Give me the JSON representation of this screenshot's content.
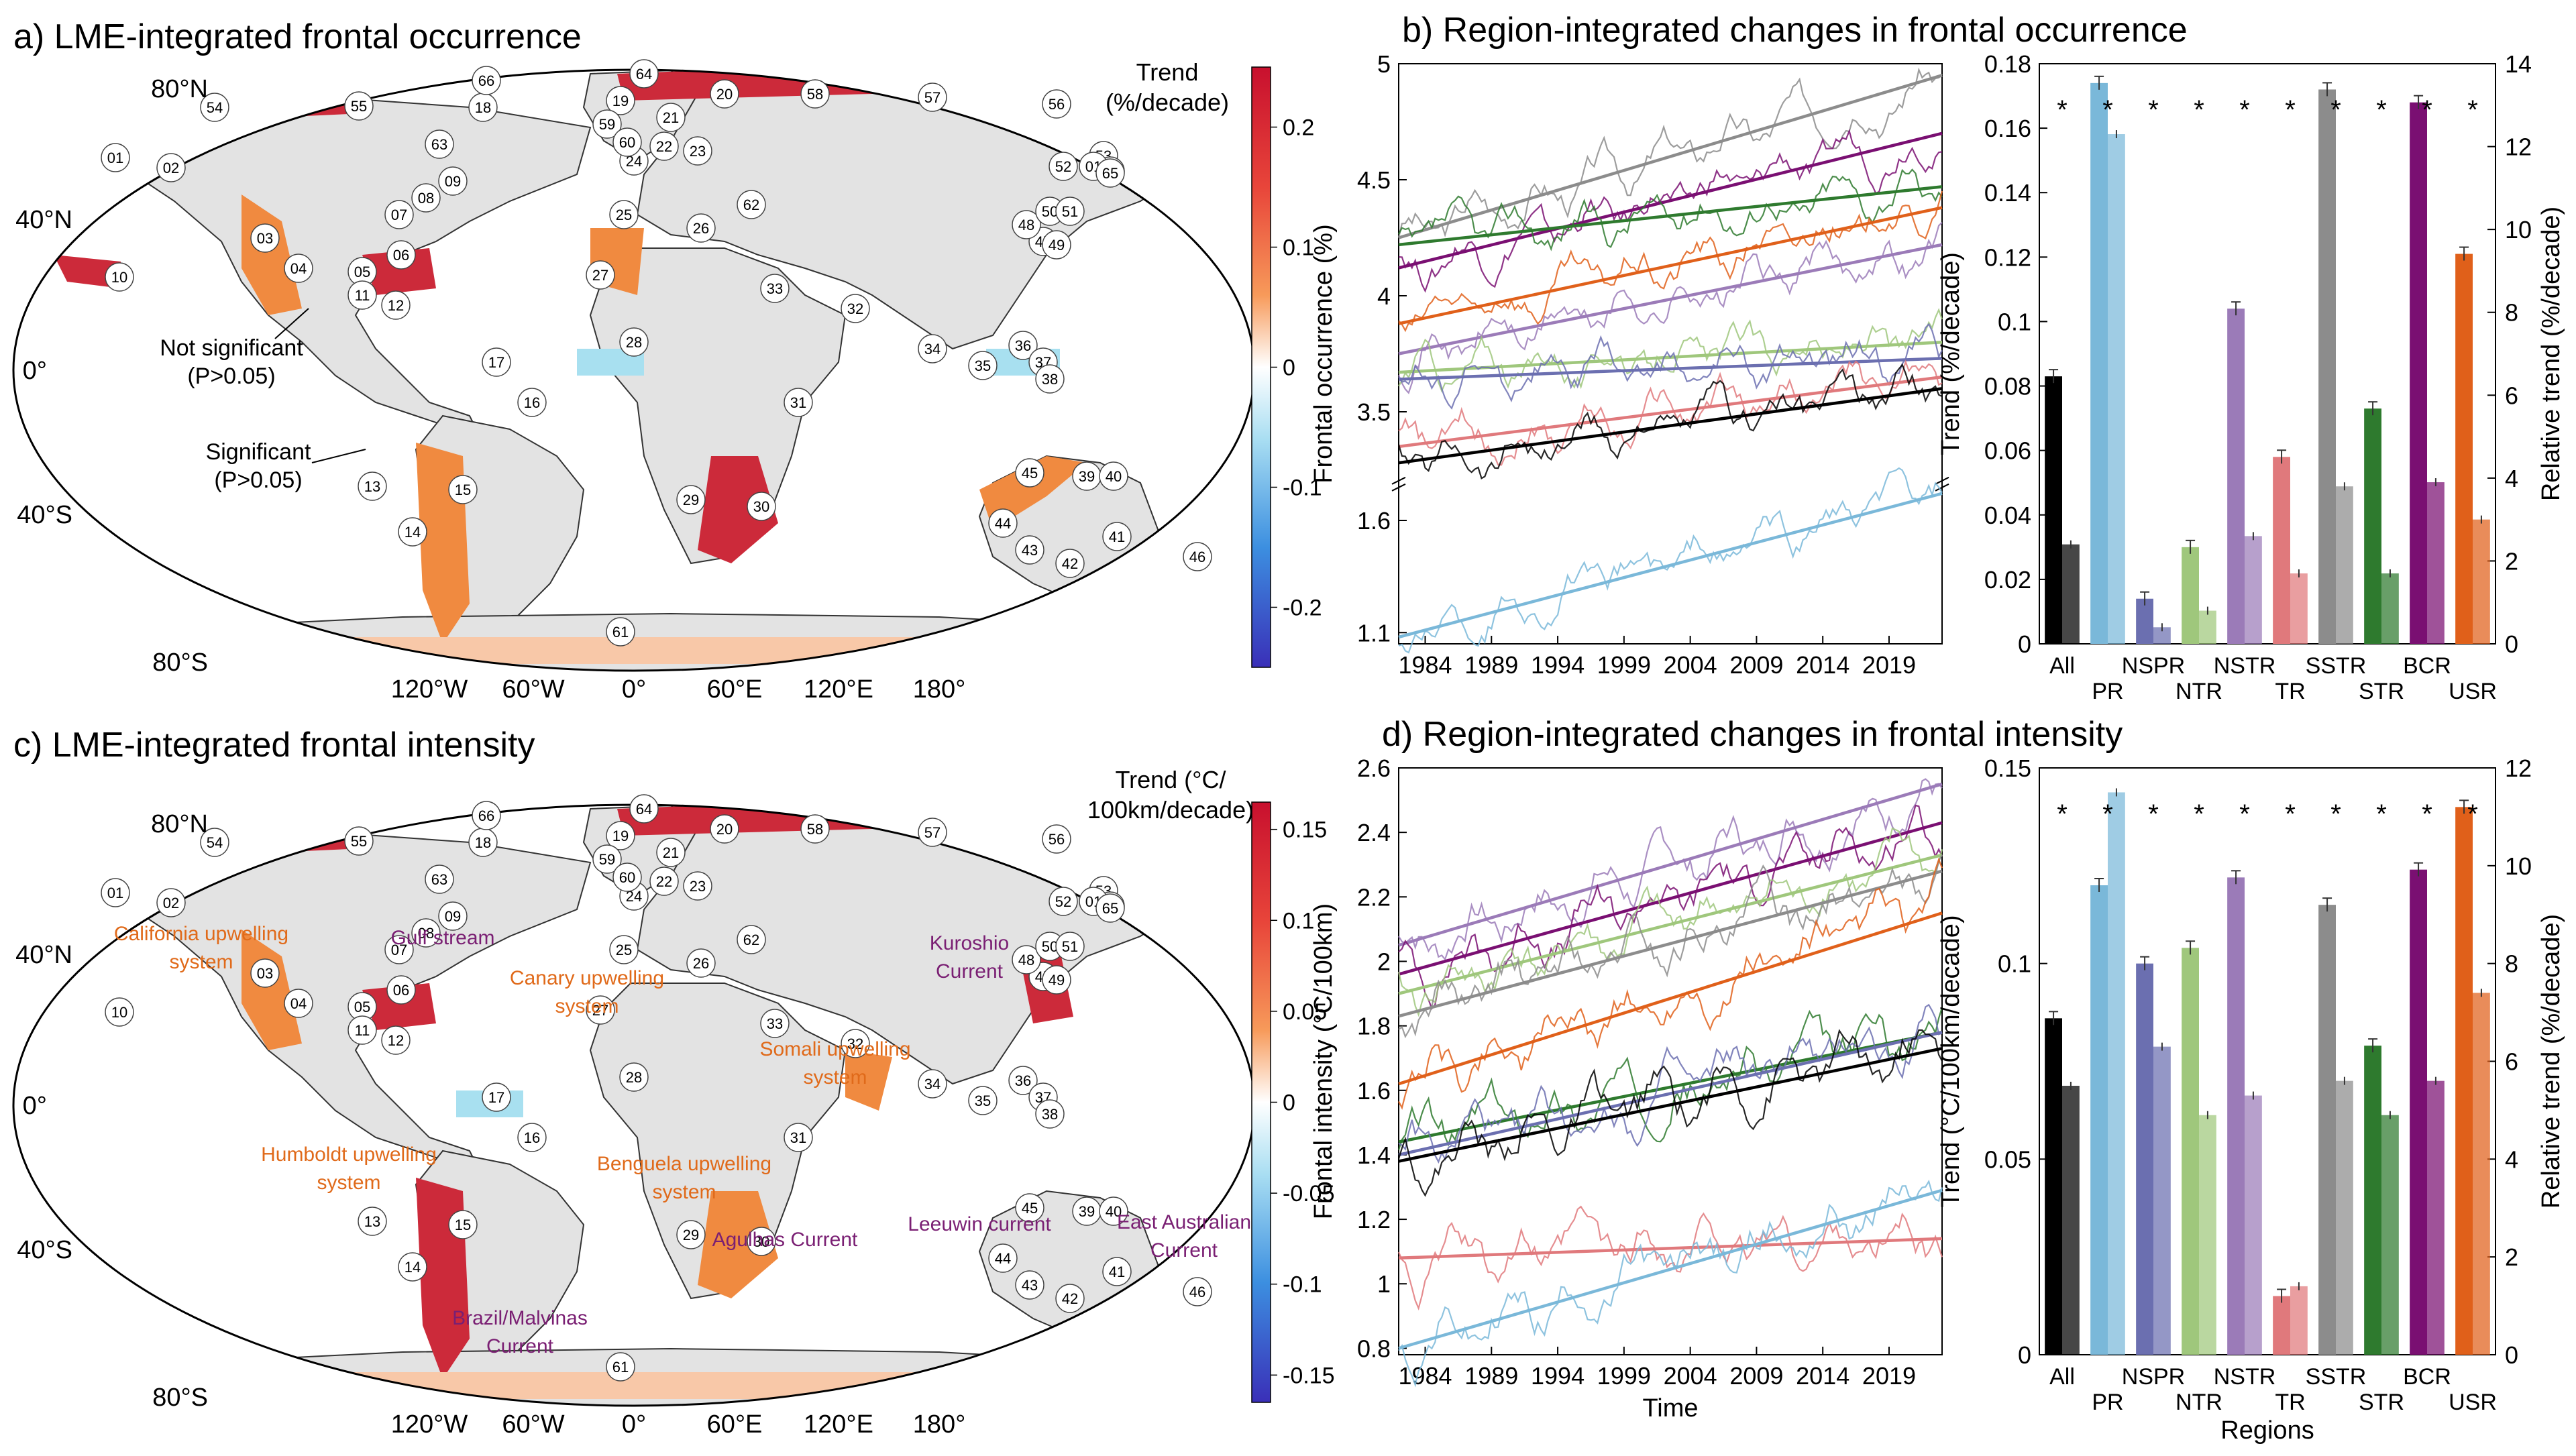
{
  "panels": {
    "a": {
      "title": "a) LME-integrated frontal occurrence",
      "colorbar_title": [
        "Trend",
        "(%/decade)"
      ],
      "colorbar_ticks": [
        "0.2",
        "0.1",
        "0",
        "-0.1",
        "-0.2"
      ],
      "annotations": [
        "Not significant",
        "(P>0.05)",
        "Significant",
        "(P>0.05)"
      ]
    },
    "c": {
      "title": "c) LME-integrated frontal intensity",
      "colorbar_title": [
        "Trend (°C/",
        "100km/decade)"
      ],
      "colorbar_ticks": [
        "0.15",
        "0.1",
        "0.05",
        "0",
        "-0.05",
        "-0.1",
        "-0.15"
      ],
      "current_labels": [
        {
          "text": "California upwelling",
          "color": "#e06a1a"
        },
        {
          "text": "system",
          "color": "#e06a1a"
        },
        {
          "text": "Gulf stream",
          "color": "#7a1f73"
        },
        {
          "text": "Canary upwelling",
          "color": "#e06a1a"
        },
        {
          "text": "system",
          "color": "#e06a1a"
        },
        {
          "text": "Kuroshio",
          "color": "#7a1f73"
        },
        {
          "text": "Current",
          "color": "#7a1f73"
        },
        {
          "text": "Somali upwelling",
          "color": "#e06a1a"
        },
        {
          "text": "system",
          "color": "#e06a1a"
        },
        {
          "text": "Humboldt upwelling",
          "color": "#e06a1a"
        },
        {
          "text": "system",
          "color": "#e06a1a"
        },
        {
          "text": "Benguela upwelling",
          "color": "#e06a1a"
        },
        {
          "text": "system",
          "color": "#e06a1a"
        },
        {
          "text": "Agulhas Current",
          "color": "#7a1f73"
        },
        {
          "text": "Leeuwin current",
          "color": "#7a1f73"
        },
        {
          "text": "East Australian",
          "color": "#7a1f73"
        },
        {
          "text": "Current",
          "color": "#7a1f73"
        },
        {
          "text": "Brazil/Malvinas",
          "color": "#7a1f73"
        },
        {
          "text": "Current",
          "color": "#7a1f73"
        }
      ]
    },
    "b": {
      "title": "b) Region-integrated changes in frontal occurrence"
    },
    "d": {
      "title": "d) Region-integrated changes in frontal intensity"
    }
  },
  "map_labels": {
    "lat": [
      "80°N",
      "40°N",
      "0°",
      "40°S",
      "80°S"
    ],
    "lon": [
      "120°W",
      "60°W",
      "0°",
      "60°E",
      "120°E",
      "180°"
    ]
  },
  "lme_ids": [
    "01",
    "02",
    "03",
    "04",
    "05",
    "06",
    "07",
    "08",
    "09",
    "10",
    "11",
    "12",
    "13",
    "14",
    "15",
    "16",
    "17",
    "18",
    "19",
    "20",
    "21",
    "22",
    "23",
    "24",
    "25",
    "26",
    "27",
    "28",
    "29",
    "30",
    "31",
    "32",
    "33",
    "34",
    "35",
    "36",
    "37",
    "38",
    "39",
    "40",
    "41",
    "42",
    "43",
    "44",
    "45",
    "46",
    "47",
    "48",
    "49",
    "50",
    "51",
    "52",
    "53",
    "54",
    "55",
    "56",
    "57",
    "58",
    "59",
    "60",
    "61",
    "62",
    "63",
    "64",
    "65",
    "66",
    "01",
    "65"
  ],
  "colors": {
    "All": "#000000",
    "PR": "#7ab8d9",
    "NSPR": "#6b6fb0",
    "NTR": "#9fc77c",
    "NSTR": "#9b7bb8",
    "TR": "#e0797c",
    "SSTR": "#8c8c8c",
    "STR": "#2e7a2e",
    "BCR": "#7a0f72",
    "USR": "#e0601a",
    "land": "#e3e3e3",
    "strong_pos": "#cc2a3a",
    "mid_pos": "#f08a40",
    "weak_pos": "#f8c8a8",
    "neg": "#a8e0f0"
  },
  "chart_data": [
    {
      "type": "line",
      "panel": "b",
      "ylabel": "Frontal occurrence (%)",
      "xlabel": "",
      "x_ticks": [
        1984,
        1989,
        1994,
        1999,
        2004,
        2009,
        2014,
        2019
      ],
      "xlim": [
        1982,
        2023
      ],
      "y_upper_ticks": [
        3.5,
        4,
        4.5,
        5
      ],
      "y_upper_range": [
        3.2,
        5.0
      ],
      "y_lower_ticks": [
        1.1,
        1.6
      ],
      "y_lower_range": [
        1.05,
        1.75
      ],
      "series": [
        {
          "key": "SSTR",
          "start": 4.25,
          "end": 4.95,
          "axis": "upper"
        },
        {
          "key": "BCR",
          "start": 4.12,
          "end": 4.7,
          "axis": "upper"
        },
        {
          "key": "STR",
          "start": 4.22,
          "end": 4.47,
          "axis": "upper"
        },
        {
          "key": "USR",
          "start": 3.88,
          "end": 4.38,
          "axis": "upper"
        },
        {
          "key": "NSTR",
          "start": 3.75,
          "end": 4.22,
          "axis": "upper"
        },
        {
          "key": "NTR",
          "start": 3.67,
          "end": 3.8,
          "axis": "upper"
        },
        {
          "key": "NSPR",
          "start": 3.64,
          "end": 3.73,
          "axis": "upper"
        },
        {
          "key": "TR",
          "start": 3.35,
          "end": 3.65,
          "axis": "upper"
        },
        {
          "key": "All",
          "start": 3.28,
          "end": 3.6,
          "axis": "upper"
        },
        {
          "key": "PR",
          "start": 1.08,
          "end": 1.72,
          "axis": "lower"
        }
      ]
    },
    {
      "type": "bar",
      "panel": "b-bars",
      "categories": [
        "All",
        "PR",
        "NSPR",
        "NTR",
        "NSTR",
        "TR",
        "SSTR",
        "STR",
        "BCR",
        "USR"
      ],
      "ylabel": "Trend (%/decade)",
      "y2label": "Relative trend (%/decade)",
      "ylim": [
        0,
        0.18
      ],
      "y2lim": [
        0,
        14
      ],
      "y_ticks": [
        0,
        0.02,
        0.04,
        0.06,
        0.08,
        0.1,
        0.12,
        0.14,
        0.16,
        0.18
      ],
      "y2_ticks": [
        0,
        2,
        4,
        6,
        8,
        10,
        12,
        14
      ],
      "trend": [
        0.083,
        0.174,
        0.014,
        0.03,
        0.104,
        0.058,
        0.172,
        0.073,
        0.168,
        0.121
      ],
      "relative": [
        2.4,
        12.3,
        0.4,
        0.8,
        2.6,
        1.7,
        3.8,
        1.7,
        3.9,
        3.0
      ],
      "significance": [
        "*",
        "*",
        "*",
        "*",
        "*",
        "*",
        "*",
        "*",
        "*",
        "*"
      ]
    },
    {
      "type": "line",
      "panel": "d",
      "ylabel": "Frontal intensity (°C/100km)",
      "xlabel": "Time",
      "x_ticks": [
        1984,
        1989,
        1994,
        1999,
        2004,
        2009,
        2014,
        2019
      ],
      "xlim": [
        1982,
        2023
      ],
      "y_ticks": [
        0.8,
        1,
        1.2,
        1.4,
        1.6,
        1.8,
        2,
        2.2,
        2.4,
        2.6
      ],
      "ylim": [
        0.78,
        2.6
      ],
      "series": [
        {
          "key": "NSTR",
          "start": 2.05,
          "end": 2.55
        },
        {
          "key": "BCR",
          "start": 1.96,
          "end": 2.43
        },
        {
          "key": "NTR",
          "start": 1.9,
          "end": 2.33
        },
        {
          "key": "SSTR",
          "start": 1.83,
          "end": 2.28
        },
        {
          "key": "USR",
          "start": 1.62,
          "end": 2.15
        },
        {
          "key": "STR",
          "start": 1.44,
          "end": 1.78
        },
        {
          "key": "NSPR",
          "start": 1.4,
          "end": 1.78
        },
        {
          "key": "All",
          "start": 1.38,
          "end": 1.73
        },
        {
          "key": "TR",
          "start": 1.08,
          "end": 1.14
        },
        {
          "key": "PR",
          "start": 0.8,
          "end": 1.29
        }
      ]
    },
    {
      "type": "bar",
      "panel": "d-bars",
      "categories": [
        "All",
        "PR",
        "NSPR",
        "NTR",
        "NSTR",
        "TR",
        "SSTR",
        "STR",
        "BCR",
        "USR"
      ],
      "ylabel": "Trend (°C/100km/decade)",
      "y2label": "Relative trend (%/decade)",
      "xlabel": "Regions",
      "ylim": [
        0,
        0.15
      ],
      "y2lim": [
        0,
        12
      ],
      "y_ticks": [
        0,
        0.05,
        0.1,
        0.15
      ],
      "y2_ticks": [
        0,
        2,
        4,
        6,
        8,
        10,
        12
      ],
      "trend": [
        0.086,
        0.12,
        0.1,
        0.104,
        0.122,
        0.015,
        0.115,
        0.079,
        0.124,
        0.14
      ],
      "relative": [
        5.5,
        11.5,
        6.3,
        4.9,
        5.3,
        1.4,
        5.6,
        4.9,
        5.6,
        7.4
      ],
      "significance": [
        "*",
        "*",
        "*",
        "*",
        "*",
        "*",
        "*",
        "*",
        "*",
        "*"
      ]
    }
  ]
}
